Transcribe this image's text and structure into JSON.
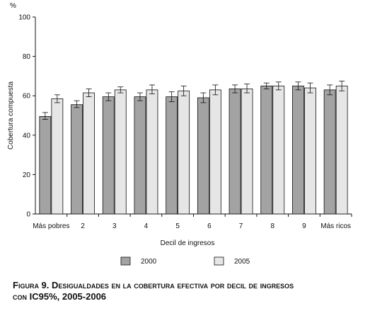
{
  "chart_data": {
    "type": "bar",
    "unit_label": "%",
    "ylabel": "Cobertura compuesta",
    "xlabel": "Decil de ingresos",
    "ylim": [
      0,
      100
    ],
    "yticks": [
      0,
      20,
      40,
      60,
      80,
      100
    ],
    "grid": false,
    "legend_position": "bottom",
    "categories": [
      "Más pobres",
      "2",
      "3",
      "4",
      "5",
      "6",
      "7",
      "8",
      "9",
      "Más ricos"
    ],
    "series": [
      {
        "name": "2000",
        "color": "#a3a3a3",
        "values": [
          49.5,
          55.5,
          59.5,
          59.5,
          59.5,
          59,
          63.5,
          65,
          65,
          63
        ],
        "ci_low": [
          48,
          54,
          57.5,
          57.5,
          57,
          56.5,
          61.5,
          63.5,
          63,
          60.5
        ],
        "ci_high": [
          51.5,
          57.5,
          61.5,
          61.5,
          62,
          61.5,
          65.5,
          66.5,
          67,
          65.5
        ]
      },
      {
        "name": "2005",
        "color": "#e6e6e6",
        "values": [
          58.5,
          61.5,
          63,
          63,
          62.5,
          63,
          63.5,
          65,
          64,
          65
        ],
        "ci_low": [
          56.5,
          59.5,
          61.5,
          61,
          60,
          60.5,
          61.5,
          63,
          61.5,
          62.5
        ],
        "ci_high": [
          60.5,
          63.5,
          64.5,
          65.5,
          65,
          65.5,
          66,
          67,
          66.5,
          67.5
        ]
      }
    ]
  },
  "caption": {
    "line1": "Figura 9. Desigualdades en la cobertura efectiva por decil de ingresos",
    "line2": "con IC95%, 2005-2006"
  }
}
